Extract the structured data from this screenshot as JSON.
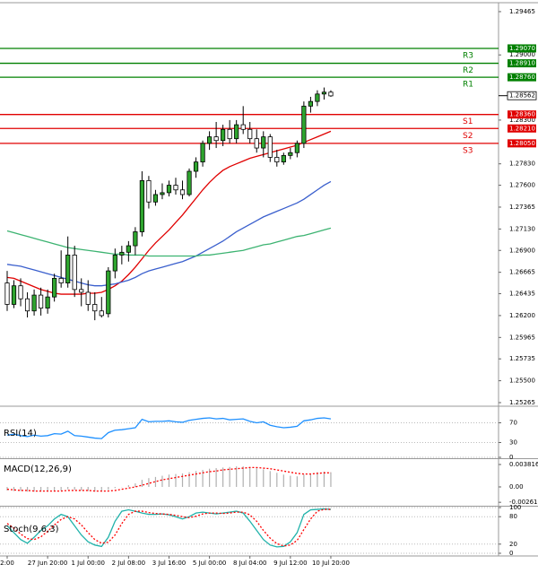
{
  "chart_data": [
    {
      "type": "candlestick",
      "categories": [
        "2:00",
        null,
        null,
        null,
        null,
        null,
        "27 Jun 20:00",
        null,
        null,
        null,
        null,
        null,
        "1 Jul 00:00",
        null,
        null,
        null,
        null,
        null,
        "2 Jul 08:00",
        null,
        null,
        null,
        null,
        null,
        "3 Jul 16:00",
        null,
        null,
        null,
        null,
        null,
        "5 Jul 00:00",
        null,
        null,
        null,
        null,
        null,
        "8 Jul 04:00",
        null,
        null,
        null,
        null,
        null,
        "9 Jul 12:00",
        null,
        null,
        null,
        null,
        null,
        "10 Jul 20:00"
      ],
      "open": [
        1.2655,
        1.2632,
        1.2652,
        1.2638,
        1.2625,
        1.2642,
        1.2628,
        1.264,
        1.266,
        1.2655,
        1.2685,
        1.2648,
        1.2645,
        1.2632,
        1.2625,
        1.2622,
        1.2668,
        1.2685,
        1.2688,
        1.2695,
        1.271,
        1.2765,
        1.2742,
        1.275,
        1.2752,
        1.276,
        1.2755,
        1.275,
        1.2775,
        1.2785,
        1.2805,
        1.2812,
        1.2808,
        1.282,
        1.281,
        1.2825,
        1.282,
        1.281,
        1.28,
        1.2812,
        1.279,
        1.2785,
        1.2792,
        1.2795,
        1.2805,
        1.2845,
        1.285,
        1.2858,
        1.286
      ],
      "high": [
        1.2668,
        1.2658,
        1.266,
        1.2645,
        1.2648,
        1.265,
        1.2648,
        1.2665,
        1.269,
        1.2705,
        1.2695,
        1.266,
        1.2658,
        1.2645,
        1.264,
        1.2672,
        1.2692,
        1.2695,
        1.27,
        1.2715,
        1.2775,
        1.277,
        1.2755,
        1.2762,
        1.2765,
        1.2768,
        1.2765,
        1.2778,
        1.279,
        1.2808,
        1.2818,
        1.2828,
        1.2825,
        1.283,
        1.283,
        1.2845,
        1.2828,
        1.282,
        1.2818,
        1.2815,
        1.2798,
        1.2795,
        1.28,
        1.2808,
        1.285,
        1.2855,
        1.2862,
        1.2865,
        1.2862
      ],
      "low": [
        1.2625,
        1.2628,
        1.263,
        1.2618,
        1.262,
        1.262,
        1.2622,
        1.2635,
        1.265,
        1.265,
        1.264,
        1.263,
        1.2625,
        1.2615,
        1.2618,
        1.2618,
        1.266,
        1.2675,
        1.2678,
        1.2685,
        1.2705,
        1.2735,
        1.2738,
        1.2745,
        1.2748,
        1.275,
        1.2745,
        1.2748,
        1.2768,
        1.278,
        1.2798,
        1.28,
        1.2802,
        1.2805,
        1.2805,
        1.2815,
        1.2805,
        1.2795,
        1.279,
        1.2785,
        1.278,
        1.2782,
        1.2788,
        1.279,
        1.28,
        1.2838,
        1.2845,
        1.2852,
        1.2855
      ],
      "close": [
        1.2632,
        1.2652,
        1.2638,
        1.2625,
        1.2642,
        1.2628,
        1.264,
        1.266,
        1.2655,
        1.2685,
        1.2648,
        1.2645,
        1.2632,
        1.2625,
        1.262,
        1.2668,
        1.2685,
        1.2688,
        1.2695,
        1.271,
        1.2765,
        1.2742,
        1.275,
        1.2752,
        1.276,
        1.2755,
        1.275,
        1.2775,
        1.2785,
        1.2805,
        1.2812,
        1.2808,
        1.282,
        1.281,
        1.2825,
        1.282,
        1.281,
        1.28,
        1.2812,
        1.279,
        1.2785,
        1.2792,
        1.2795,
        1.2805,
        1.2845,
        1.285,
        1.2858,
        1.286,
        1.2856
      ],
      "up_color": "#2fa52f",
      "down_color": "#ffffff",
      "series": [
        {
          "color": "#e00000",
          "values": [
            1.2661,
            1.266,
            1.2657,
            1.2654,
            1.2651,
            1.2648,
            1.2646,
            1.2644,
            1.2643,
            1.2643,
            1.2643,
            1.2643,
            1.2644,
            1.2644,
            1.2645,
            1.2648,
            1.2652,
            1.2657,
            1.2664,
            1.2672,
            1.2681,
            1.269,
            1.2698,
            1.2705,
            1.2712,
            1.272,
            1.2728,
            1.2737,
            1.2746,
            1.2755,
            1.2763,
            1.277,
            1.2776,
            1.278,
            1.2783,
            1.2786,
            1.2789,
            1.2791,
            1.2793,
            1.2795,
            1.2797,
            1.2799,
            1.2801,
            1.2803,
            1.2806,
            1.2809,
            1.2812,
            1.2815,
            1.2818
          ]
        },
        {
          "color": "#3a5fcd",
          "values": [
            1.2675,
            1.2674,
            1.2673,
            1.2671,
            1.2669,
            1.2667,
            1.2665,
            1.2663,
            1.2661,
            1.2659,
            1.2657,
            1.2655,
            1.2653,
            1.2652,
            1.2652,
            1.2653,
            1.2654,
            1.2656,
            1.2658,
            1.2661,
            1.2665,
            1.2668,
            1.267,
            1.2672,
            1.2674,
            1.2676,
            1.2678,
            1.2681,
            1.2684,
            1.2688,
            1.2692,
            1.2696,
            1.27,
            1.2705,
            1.271,
            1.2714,
            1.2718,
            1.2722,
            1.2726,
            1.2729,
            1.2732,
            1.2735,
            1.2738,
            1.2741,
            1.2745,
            1.275,
            1.2755,
            1.276,
            1.2764
          ]
        },
        {
          "color": "#3cb371",
          "values": [
            1.2711,
            1.2709,
            1.2707,
            1.2705,
            1.2703,
            1.2701,
            1.2699,
            1.2697,
            1.2695,
            1.2693,
            1.2692,
            1.2691,
            1.269,
            1.2689,
            1.2688,
            1.2687,
            1.2686,
            1.2686,
            1.2685,
            1.2685,
            1.2685,
            1.2684,
            1.2684,
            1.2684,
            1.2684,
            1.2684,
            1.2684,
            1.2684,
            1.2684,
            1.2685,
            1.2685,
            1.2686,
            1.2687,
            1.2688,
            1.2689,
            1.269,
            1.2692,
            1.2694,
            1.2696,
            1.2697,
            1.2699,
            1.2701,
            1.2703,
            1.2705,
            1.2706,
            1.2708,
            1.271,
            1.2712,
            1.2714
          ]
        }
      ],
      "levels": [
        {
          "name": "R3",
          "value": 1.2907,
          "label": "1.29070",
          "color": "#008000"
        },
        {
          "name": "R2",
          "value": 1.2891,
          "label": "1.28910",
          "color": "#008000"
        },
        {
          "name": "R1",
          "value": 1.2876,
          "label": "1.28760",
          "color": "#008000"
        },
        {
          "name": "S1",
          "value": 1.2836,
          "label": "1.28360",
          "color": "#e00000"
        },
        {
          "name": "S2",
          "value": 1.2821,
          "label": "1.28210",
          "color": "#e00000"
        },
        {
          "name": "S3",
          "value": 1.2805,
          "label": "1.28050",
          "color": "#e00000"
        }
      ],
      "current_price": 1.28562,
      "ylim": [
        1.25236,
        1.29561
      ],
      "yticks": [
        1.25265,
        {
          "value": 1.255,
          "label": "1.25500"
        },
        1.25735,
        1.25965,
        {
          "value": 1.262,
          "label": "1.26200"
        },
        1.26435,
        1.26665,
        {
          "value": 1.269,
          "label": "1.26900"
        },
        {
          "value": 1.2713,
          "label": "1.27130"
        },
        1.27365,
        {
          "value": 1.276,
          "label": "1.27600"
        },
        {
          "value": 1.2783,
          "label": "1.27830"
        },
        {
          "value": 1.283,
          "label": "1.28300"
        },
        {
          "value": 1.29,
          "label": "1.29000"
        },
        1.29465
      ]
    },
    {
      "type": "line",
      "title": "RSI(14)",
      "series": [
        {
          "color": "#1e90ff",
          "values": [
            45,
            47,
            44,
            42,
            45,
            43,
            44,
            48,
            47,
            53,
            44,
            43,
            41,
            39,
            38,
            50,
            55,
            56,
            58,
            60,
            77,
            72,
            73,
            73,
            74,
            72,
            71,
            75,
            77,
            79,
            80,
            78,
            79,
            76,
            77,
            78,
            73,
            70,
            72,
            65,
            62,
            60,
            61,
            63,
            74,
            76,
            79,
            80,
            78
          ]
        }
      ],
      "ylim": [
        0,
        100
      ],
      "yticks": [
        0,
        30,
        70
      ]
    },
    {
      "type": "macd",
      "title": "MACD(12,26,9)",
      "color": "#b0b0b0",
      "values": [
        -0.0006,
        -0.0007,
        -0.0007,
        -0.0008,
        -0.0008,
        -0.0008,
        -0.0008,
        -0.0007,
        -0.0006,
        -0.0004,
        -0.0005,
        -0.0006,
        -0.0007,
        -0.0008,
        -0.0008,
        -0.0005,
        -0.0002,
        0.0,
        0.0003,
        0.0006,
        0.0012,
        0.0015,
        0.0017,
        0.0019,
        0.0021,
        0.0022,
        0.0023,
        0.0025,
        0.0027,
        0.0029,
        0.0031,
        0.0032,
        0.0033,
        0.0034,
        0.0035,
        0.0035,
        0.0034,
        0.0032,
        0.003,
        0.0027,
        0.0024,
        0.0021,
        0.0019,
        0.0018,
        0.0021,
        0.0023,
        0.0025,
        0.0026,
        0.0025
      ],
      "series": [
        {
          "color": "#ff0000",
          "dashed": true,
          "values": [
            -0.0004,
            -0.0005,
            -0.0006,
            -0.0006,
            -0.0007,
            -0.0007,
            -0.0007,
            -0.0007,
            -0.0007,
            -0.0006,
            -0.0006,
            -0.0006,
            -0.0006,
            -0.0007,
            -0.0007,
            -0.0007,
            -0.0006,
            -0.0004,
            -0.0002,
            0.0,
            0.0003,
            0.0006,
            0.0009,
            0.0012,
            0.0014,
            0.0016,
            0.0018,
            0.002,
            0.0022,
            0.0024,
            0.0026,
            0.0027,
            0.0029,
            0.003,
            0.0031,
            0.0032,
            0.0033,
            0.0033,
            0.0032,
            0.0031,
            0.0029,
            0.0027,
            0.0025,
            0.0023,
            0.0022,
            0.0022,
            0.0023,
            0.0024,
            0.0024
          ]
        }
      ],
      "ylim": [
        -0.00305,
        0.00458
      ],
      "yticks": [
        -0.002617,
        {
          "value": 0,
          "label": "0.00"
        },
        0.003816
      ]
    },
    {
      "type": "line",
      "title": "Stoch(9,6,3)",
      "series": [
        {
          "color": "#20b2aa",
          "values": [
            60,
            45,
            30,
            22,
            35,
            50,
            60,
            75,
            85,
            80,
            60,
            40,
            25,
            18,
            15,
            35,
            70,
            92,
            95,
            92,
            88,
            85,
            85,
            86,
            84,
            80,
            75,
            80,
            88,
            90,
            88,
            86,
            88,
            90,
            92,
            88,
            70,
            50,
            30,
            18,
            14,
            15,
            25,
            45,
            85,
            95,
            96,
            97,
            96
          ]
        },
        {
          "color": "#ff0000",
          "dashed": true,
          "values": [
            65,
            55,
            42,
            32,
            30,
            36,
            48,
            62,
            74,
            80,
            75,
            62,
            45,
            30,
            22,
            24,
            40,
            65,
            85,
            92,
            92,
            89,
            87,
            86,
            85,
            83,
            80,
            78,
            81,
            86,
            88,
            88,
            87,
            88,
            90,
            90,
            84,
            70,
            50,
            33,
            21,
            16,
            18,
            28,
            52,
            75,
            92,
            96,
            96
          ]
        }
      ],
      "ylim": [
        0,
        100
      ],
      "yticks": [
        0,
        20,
        80,
        100
      ]
    }
  ]
}
